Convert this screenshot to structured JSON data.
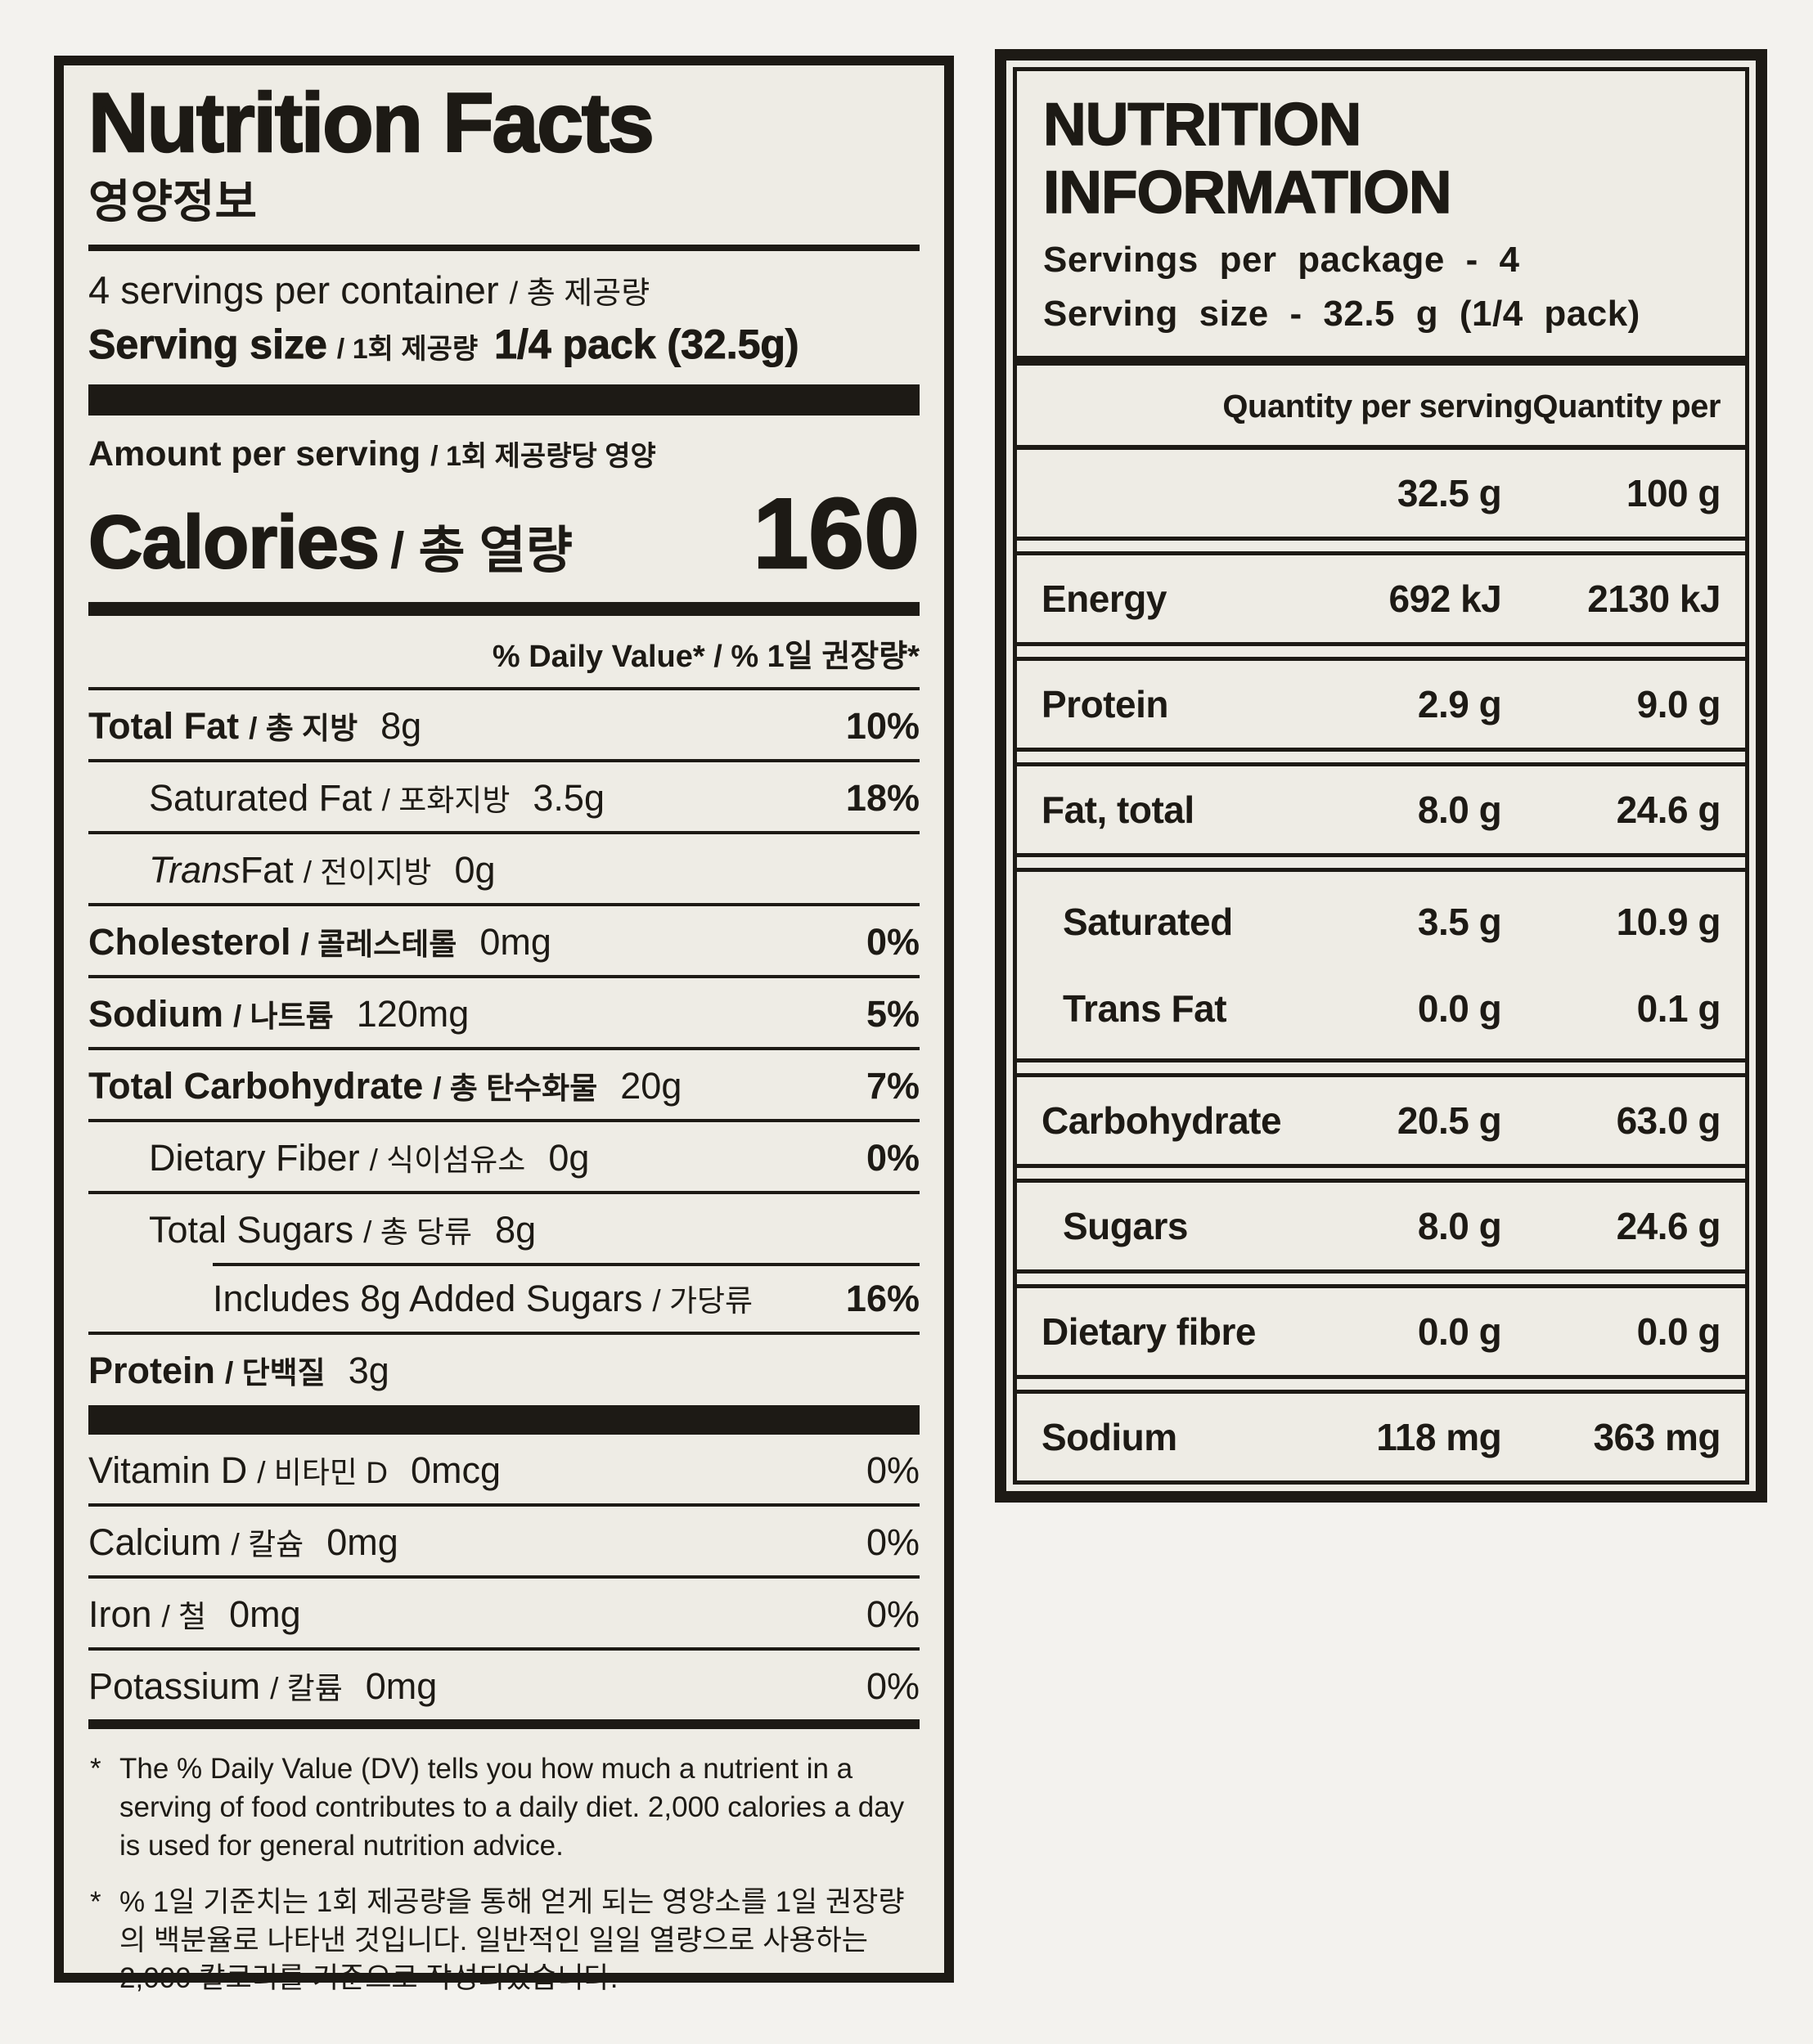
{
  "colors": {
    "ink": "#1d1a15",
    "paper": "#eeece5",
    "page_bg": "#f3f2ee"
  },
  "left_panel": {
    "title": "Nutrition Facts",
    "title_kr": "영양정보",
    "servings_line": {
      "en": "4 servings per container",
      "kr": "/ 총 제공량"
    },
    "serving_size": {
      "label_en": "Serving size",
      "label_kr": "/ 1회 제공량",
      "value": "1/4 pack (32.5g)"
    },
    "amount_per_serving": {
      "en": "Amount per serving",
      "kr": "/ 1회 제공량당 영양"
    },
    "calories": {
      "label_en": "Calories",
      "label_kr": "/ 총 열량",
      "value": "160"
    },
    "dv_header": {
      "en": "% Daily Value*",
      "kr": "/ % 1일 권장량*"
    },
    "rows": [
      {
        "en": "Total Fat",
        "kr": "/ 총 지방",
        "amount": "8g",
        "dv": "10%"
      },
      {
        "en": "Saturated Fat",
        "kr": "/ 포화지방",
        "amount": "3.5g",
        "dv": "18%"
      },
      {
        "en_italic": "Trans",
        "en": " Fat",
        "kr": "/ 전이지방",
        "amount": "0g",
        "dv": ""
      },
      {
        "en": "Cholesterol",
        "kr": "/ 콜레스테롤",
        "amount": "0mg",
        "dv": "0%"
      },
      {
        "en": "Sodium",
        "kr": "/ 나트륨",
        "amount": "120mg",
        "dv": "5%"
      },
      {
        "en": "Total Carbohydrate",
        "kr": "/ 총 탄수화물",
        "amount": "20g",
        "dv": "7%"
      },
      {
        "en": "Dietary Fiber",
        "kr": "/ 식이섬유소",
        "amount": "0g",
        "dv": "0%"
      },
      {
        "en": "Total Sugars",
        "kr": "/ 총 당류",
        "amount": "8g",
        "dv": ""
      },
      {
        "en": "Includes 8g Added Sugars",
        "kr": "/ 가당류",
        "amount": "",
        "dv": "16%"
      },
      {
        "en": "Protein",
        "kr": "/ 단백질",
        "amount": "3g",
        "dv": ""
      }
    ],
    "vitamin_rows": [
      {
        "en": "Vitamin D",
        "kr": "/ 비타민 D",
        "amount": "0mcg",
        "dv": "0%"
      },
      {
        "en": "Calcium",
        "kr": "/ 칼슘",
        "amount": "0mg",
        "dv": "0%"
      },
      {
        "en": "Iron",
        "kr": "/ 철",
        "amount": "0mg",
        "dv": "0%"
      },
      {
        "en": "Potassium",
        "kr": "/ 칼륨",
        "amount": "0mg",
        "dv": "0%"
      }
    ],
    "footnotes": [
      {
        "mark": "*",
        "text": "The % Daily Value (DV) tells you how much a nutrient in a serving of food contributes to a daily diet. 2,000 calories a day is used for general nutrition advice."
      },
      {
        "mark": "*",
        "text": "% 1일 기준치는 1회 제공량을 통해 얻게 되는 영양소를 1일 권장량의 백분율로 나타낸 것입니다. 일반적인 일일 열량으로 사용하는 2,000 칼로리를 기준으로 작성되었습니다."
      }
    ]
  },
  "right_panel": {
    "title": "NUTRITION INFORMATION",
    "servings_line": "Servings per package - 4",
    "serving_size_line": "Serving size - 32.5 g (1/4 pack)",
    "col_headers": {
      "serving": "Quantity per serving",
      "per100": "Quantity per"
    },
    "unit_row": {
      "serving": "32.5 g",
      "per100": "100 g"
    },
    "rows": [
      {
        "name": "Energy",
        "serving": "692 kJ",
        "per100": "2130 kJ"
      },
      {
        "name": "Protein",
        "serving": "2.9 g",
        "per100": "9.0 g"
      },
      {
        "name": "Fat, total",
        "serving": "8.0 g",
        "per100": "24.6 g"
      },
      {
        "name": "Saturated",
        "serving": "3.5 g",
        "per100": "10.9 g"
      },
      {
        "name": "Trans Fat",
        "serving": "0.0 g",
        "per100": "0.1 g"
      },
      {
        "name": "Carbohydrate",
        "serving": "20.5 g",
        "per100": "63.0 g"
      },
      {
        "name": "Sugars",
        "serving": "8.0 g",
        "per100": "24.6 g"
      },
      {
        "name": "Dietary fibre",
        "serving": "0.0 g",
        "per100": "0.0 g"
      },
      {
        "name": "Sodium",
        "serving": "118 mg",
        "per100": "363 mg"
      }
    ]
  }
}
